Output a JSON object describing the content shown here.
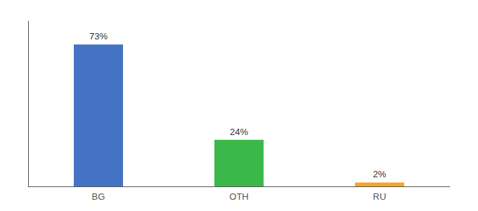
{
  "chart_data": {
    "type": "bar",
    "categories": [
      "BG",
      "OTH",
      "RU"
    ],
    "values": [
      73,
      24,
      2
    ],
    "value_labels": [
      "73%",
      "24%",
      "2%"
    ],
    "colors": [
      "#4472c4",
      "#3cb84a",
      "#f5a623"
    ],
    "ylim": [
      0,
      85
    ],
    "data_labels": true,
    "tick_labels": "x",
    "grid": false
  }
}
